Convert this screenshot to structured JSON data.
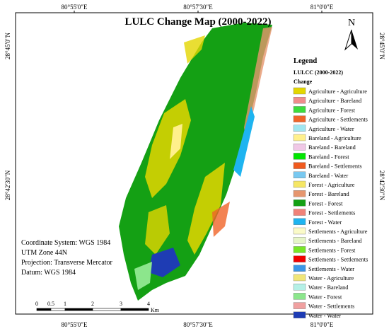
{
  "title": "LULC Change Map (2000-2022)",
  "north": "N",
  "top_coords": [
    "80°55'0\"E",
    "80°57'30\"E",
    "81°0'0\"E"
  ],
  "bottom_coords": [
    "80°55'0\"E",
    "80°57'30\"E",
    "81°0'0\"E"
  ],
  "left_coords": [
    "28°45'0\"N",
    "28°42'30\"N"
  ],
  "right_coords": [
    "28°45'0\"N",
    "28°42'30\"N"
  ],
  "legend": {
    "title": "Legend",
    "subtitle": "LULCC (2000-2022)",
    "field": "Change",
    "items": [
      {
        "label": "Agriculture - Agriculture",
        "color": "#e3d600"
      },
      {
        "label": "Agriculture - Bareland",
        "color": "#f08c8c"
      },
      {
        "label": "Agriculture - Forest",
        "color": "#3cdc3c"
      },
      {
        "label": "Agriculture - Settlements",
        "color": "#f06428"
      },
      {
        "label": "Agriculture - Water",
        "color": "#a0e6f0"
      },
      {
        "label": "Bareland - Agriculture",
        "color": "#fff08c"
      },
      {
        "label": "Bareland - Bareland",
        "color": "#f0c8e6"
      },
      {
        "label": "Bareland - Forest",
        "color": "#00e600"
      },
      {
        "label": "Bareland - Settlements",
        "color": "#f05a1e"
      },
      {
        "label": "Bareland - Water",
        "color": "#78c8f0"
      },
      {
        "label": "Forest - Agriculture",
        "color": "#f5e664"
      },
      {
        "label": "Forest - Bareland",
        "color": "#e6966e"
      },
      {
        "label": "Forest - Forest",
        "color": "#14a014"
      },
      {
        "label": "Forest - Settlements",
        "color": "#f08278"
      },
      {
        "label": "Forest - Water",
        "color": "#1eb4f0"
      },
      {
        "label": "Settlements - Agriculture",
        "color": "#fafac8"
      },
      {
        "label": "Settlements - Bareland",
        "color": "#e6f5c8"
      },
      {
        "label": "Settlements - Forest",
        "color": "#78e628"
      },
      {
        "label": "Settlements - Settlements",
        "color": "#f00000"
      },
      {
        "label": "Settlements - Water",
        "color": "#3c96e6"
      },
      {
        "label": "Water - Agriculture",
        "color": "#f0e678"
      },
      {
        "label": "Water - Bareland",
        "color": "#b4f0e6"
      },
      {
        "label": "Water - Forest",
        "color": "#8ce68c"
      },
      {
        "label": "Water - Settlements",
        "color": "#f0a0a0"
      },
      {
        "label": "Water - Water",
        "color": "#1e3cb4"
      }
    ]
  },
  "info": [
    "Coordinate System: WGS 1984",
    "UTM Zone 44N",
    "Projection: Transverse Mercator",
    "Datum: WGS 1984"
  ],
  "scale_bar": {
    "labels": [
      "0",
      "0.5",
      "1",
      "2",
      "3",
      "4"
    ],
    "unit": "Km"
  }
}
